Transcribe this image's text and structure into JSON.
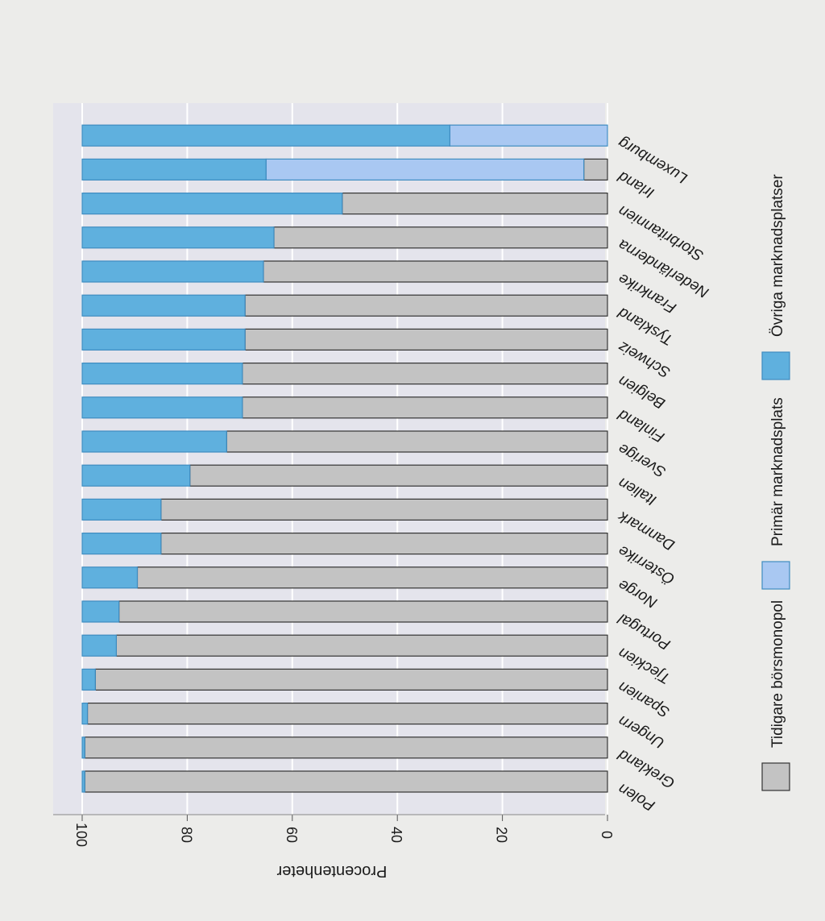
{
  "chart_data": {
    "type": "bar",
    "stacked": true,
    "orientation": "vertical, page rotated 90 degrees",
    "categories": [
      "Polen",
      "Grekland",
      "Ungern",
      "Spanien",
      "Tjeckien",
      "Portugal",
      "Norge",
      "Österrike",
      "Danmark",
      "Italien",
      "Sverige",
      "Finland",
      "Belgien",
      "Schweiz",
      "Tyskland",
      "Frankrike",
      "Nederländerna",
      "Storbritannien",
      "Irland",
      "Luxemburg"
    ],
    "series": [
      {
        "name": "Tidigare börsmonopol",
        "color": "#c3c3c3",
        "values": [
          99.5,
          99.5,
          99,
          97.5,
          93.5,
          93,
          89.5,
          85,
          85,
          79.5,
          72.5,
          69.5,
          69.5,
          69,
          69,
          65.5,
          63.5,
          50.5,
          4.5,
          0
        ]
      },
      {
        "name": "Primär marknadsplats",
        "color": "#a9c8f2",
        "values": [
          0,
          0,
          0,
          0,
          0,
          0,
          0,
          0,
          0,
          0,
          0,
          0,
          0,
          0,
          0,
          0,
          0,
          0,
          60.5,
          30
        ]
      },
      {
        "name": "Övriga marknadsplatser",
        "color": "#5fb0de",
        "values": [
          0.5,
          0.5,
          1,
          2.5,
          6.5,
          7,
          10.5,
          15,
          15,
          20.5,
          27.5,
          30.5,
          30.5,
          31,
          31,
          34.5,
          36.5,
          49.5,
          35,
          70
        ]
      }
    ],
    "ylabel": "Procentenheter",
    "ylim": [
      0,
      100
    ],
    "yticks": [
      "0",
      "20",
      "40",
      "60",
      "80",
      "100"
    ],
    "grid": true,
    "legend": "right"
  }
}
